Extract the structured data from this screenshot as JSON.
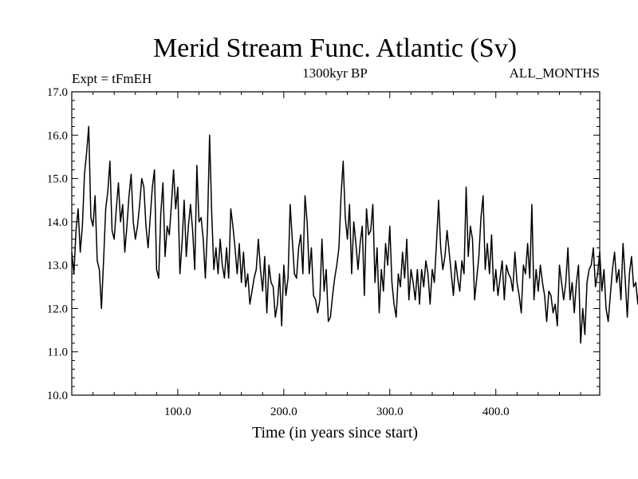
{
  "chart_data": {
    "type": "line",
    "title": "Merid Stream Func. Atlantic (Sv)",
    "subtitle_left": "Expt = tFmEH",
    "subtitle_center": "1300kyr BP",
    "subtitle_right": "ALL_MONTHS",
    "xlabel": "Time (in years since start)",
    "ylabel": "",
    "xlim": [
      0,
      498
    ],
    "ylim": [
      10.0,
      17.0
    ],
    "x_ticks": [
      100,
      200,
      300,
      400
    ],
    "x_tick_labels": [
      "100.0",
      "200.0",
      "300.0",
      "400.0"
    ],
    "y_ticks": [
      10,
      11,
      12,
      13,
      14,
      15,
      16,
      17
    ],
    "y_tick_labels": [
      "10.0",
      "11.0",
      "12.0",
      "13.0",
      "14.0",
      "15.0",
      "16.0",
      "17.0"
    ],
    "x_start": 0,
    "x_step": 2,
    "series": [
      {
        "name": "Merid Stream Func. Atlantic",
        "color": "#000000",
        "values": [
          13.3,
          12.8,
          13.8,
          14.3,
          13.3,
          13.9,
          15.1,
          15.6,
          16.2,
          14.1,
          13.9,
          14.6,
          13.1,
          12.9,
          12.0,
          13.1,
          14.3,
          14.7,
          15.4,
          13.8,
          13.6,
          14.3,
          14.9,
          14.0,
          14.4,
          13.3,
          13.9,
          14.6,
          15.1,
          14.0,
          13.6,
          13.9,
          14.4,
          15.0,
          14.8,
          13.9,
          13.4,
          14.1,
          14.8,
          15.2,
          12.9,
          12.7,
          14.2,
          14.9,
          13.2,
          13.9,
          13.7,
          14.4,
          15.2,
          14.3,
          14.8,
          12.8,
          13.5,
          14.5,
          13.2,
          13.9,
          14.4,
          13.8,
          12.9,
          15.3,
          14.0,
          14.1,
          13.6,
          12.7,
          13.9,
          16.0,
          14.2,
          12.9,
          13.4,
          12.8,
          13.6,
          13.0,
          12.7,
          13.4,
          12.7,
          14.3,
          13.9,
          13.4,
          12.8,
          13.5,
          12.6,
          13.3,
          12.5,
          12.8,
          12.1,
          12.4,
          12.7,
          12.9,
          13.6,
          12.9,
          12.4,
          13.2,
          11.9,
          13.0,
          12.6,
          12.5,
          11.8,
          12.1,
          12.8,
          11.6,
          13.0,
          12.3,
          12.7,
          14.4,
          13.6,
          12.8,
          12.7,
          13.4,
          13.7,
          12.8,
          14.6,
          14.0,
          12.8,
          13.4,
          12.3,
          12.2,
          11.9,
          12.2,
          13.6,
          12.4,
          12.9,
          11.7,
          11.8,
          12.3,
          12.7,
          13.0,
          13.4,
          14.6,
          15.4,
          14.1,
          13.6,
          14.4,
          12.8,
          14.0,
          13.5,
          12.9,
          13.5,
          13.9,
          12.3,
          14.3,
          13.7,
          13.8,
          14.4,
          12.6,
          13.4,
          11.9,
          12.9,
          12.4,
          13.5,
          13.0,
          13.9,
          12.6,
          12.1,
          11.8,
          12.8,
          12.5,
          13.3,
          12.7,
          13.6,
          12.2,
          12.9,
          12.6,
          12.2,
          12.9,
          12.1,
          12.9,
          12.5,
          13.1,
          12.8,
          12.1,
          12.9,
          12.6,
          13.5,
          14.5,
          13.4,
          12.9,
          13.2,
          13.8,
          13.3,
          12.8,
          12.3,
          13.1,
          12.7,
          12.4,
          13.1,
          12.8,
          14.8,
          13.2,
          13.9,
          13.6,
          12.2,
          12.7,
          13.2,
          14.1,
          14.6,
          12.9,
          13.5,
          12.8,
          13.7,
          12.4,
          12.9,
          12.3,
          12.7,
          13.1,
          12.2,
          13.0,
          12.8,
          12.7,
          12.4,
          13.3,
          12.6,
          12.3,
          11.9,
          13.0,
          12.8,
          13.5,
          12.7,
          14.4,
          12.2,
          12.9,
          12.4,
          13.0,
          12.6,
          12.3,
          11.7,
          12.4,
          12.3,
          11.9,
          12.1,
          11.6,
          13.0,
          12.6,
          12.2,
          12.6,
          13.4,
          12.2,
          12.6,
          11.9,
          12.6,
          13.0,
          11.2,
          12.0,
          11.4,
          12.6,
          12.9,
          13.0,
          13.4,
          12.5,
          12.8,
          13.3,
          12.4,
          12.9,
          12.0,
          11.7,
          12.3,
          12.9,
          13.3,
          12.6,
          12.9,
          12.2,
          13.5,
          12.7,
          11.8,
          12.8,
          13.2,
          12.5,
          12.6,
          12.1,
          12.8,
          12.0,
          13.0,
          11.3,
          12.7,
          11.1,
          12.4,
          11.3,
          12.0,
          13.0,
          12.7,
          12.5,
          11.0,
          12.1,
          12.6,
          12.3,
          11.6,
          12.0,
          13.1,
          12.6,
          11.9,
          12.4,
          12.9,
          12.3,
          12.1,
          13.0,
          12.4,
          11.5,
          12.9,
          12.2,
          12.5,
          11.4,
          12.2,
          11.8,
          10.6,
          11.2,
          10.5,
          12.2,
          11.6,
          12.9,
          12.4,
          11.3,
          12.7,
          13.0,
          12.2,
          12.5,
          12.9,
          13.1,
          12.2,
          12.8,
          12.1,
          12.7,
          13.3,
          12.6,
          12.1,
          12.9,
          12.6,
          13.2,
          12.5,
          12.4,
          12.8,
          13.8,
          12.9,
          13.5,
          15.1,
          14.1,
          12.9,
          13.6,
          12.8,
          13.2,
          12.4,
          13.0,
          13.6,
          12.3,
          11.9,
          12.6,
          12.2,
          12.9,
          11.7,
          12.3,
          11.4,
          12.2,
          11.9,
          12.8,
          12.2,
          12.5,
          12.8,
          12.0,
          12.6,
          13.9,
          12.4,
          13.0,
          12.5,
          12.9,
          12.4,
          13.3,
          12.2,
          12.6,
          11.3,
          12.0,
          11.5,
          12.1,
          12.9,
          13.4,
          12.6,
          13.3,
          12.7,
          12.0,
          12.5,
          13.1,
          13.7,
          12.4,
          12.8,
          12.1,
          12.5,
          11.8,
          12.0,
          12.5,
          11.6,
          11.1,
          10.7,
          11.3,
          12.5,
          12.1,
          12.7,
          12.5,
          13.1,
          12.4,
          12.8,
          11.9,
          12.4,
          11.5,
          12.2,
          12.6,
          12.2,
          11.8,
          12.4,
          11.3,
          11.6,
          11.9,
          11.1,
          12.1,
          12.6,
          13.3,
          12.0,
          12.5,
          11.5,
          12.3,
          11.8,
          11.9,
          12.6,
          12.3,
          12.8,
          12.2,
          12.9,
          13.5,
          12.7,
          12.2,
          12.8,
          13.2,
          12.7,
          13.4,
          12.4,
          13.0,
          12.8,
          13.3,
          13.9,
          13.1,
          14.0,
          13.2,
          13.8,
          14.3,
          13.4,
          14.1,
          13.3,
          12.9,
          13.6,
          14.0,
          13.1,
          12.4,
          13.1,
          12.8,
          12.3,
          13.2,
          13.9,
          13.0,
          13.4,
          12.7,
          12.9,
          12.1,
          12.6,
          11.7,
          12.6,
          12.9,
          13.5,
          12.3,
          12.8,
          13.0,
          12.4,
          13.3,
          12.6,
          12.2,
          12.5,
          13.0,
          12.4,
          12.8,
          12.5,
          11.3,
          11.7,
          12.2,
          11.9,
          11.5,
          12.7,
          11.8,
          12.2,
          11.9,
          12.5,
          12.3,
          12.8,
          12.1,
          13.0,
          12.6,
          13.1,
          12.8,
          13.3,
          12.9,
          13.4,
          14.1,
          13.2,
          13.6,
          14.6,
          13.5,
          12.9,
          13.8,
          14.1,
          12.7,
          13.2,
          13.6,
          12.4,
          13.1,
          12.9,
          13.3,
          12.8,
          12.9,
          13.9,
          13.5,
          12.9,
          13.9,
          14.1,
          13.7,
          14.3,
          12.9,
          13.2,
          12.9,
          12.5,
          13.0,
          12.9,
          13.3,
          13.0,
          14.3,
          13.8,
          13.5,
          12.3,
          13.6,
          12.3
        ]
      }
    ]
  }
}
